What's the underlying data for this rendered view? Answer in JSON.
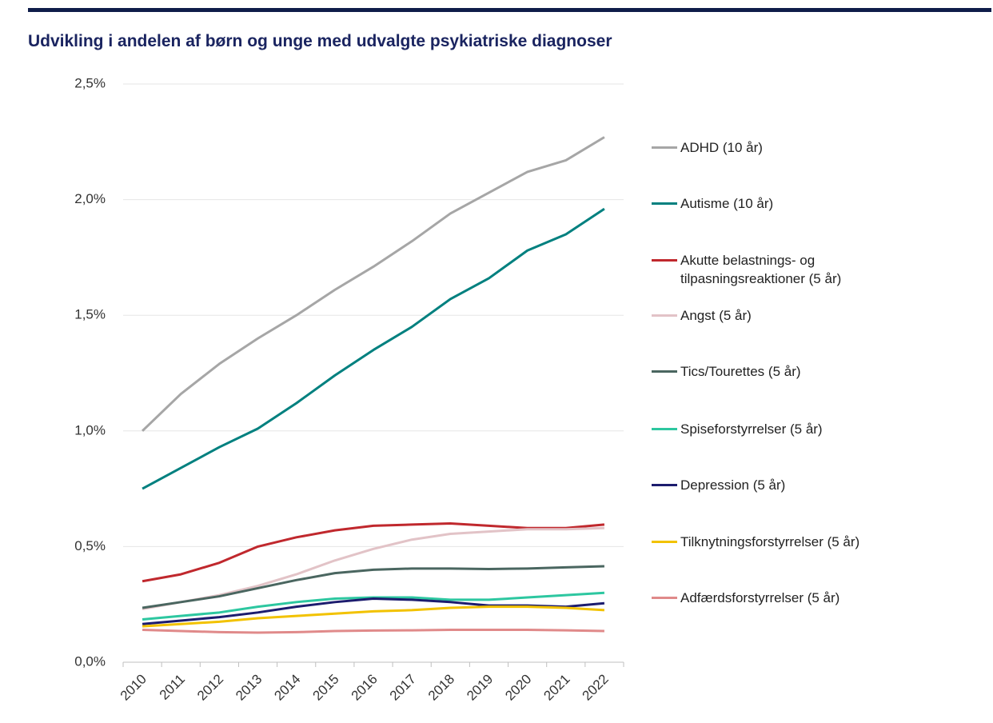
{
  "chart_data": {
    "type": "line",
    "title": "Udvikling i andelen af børn og unge med udvalgte psykiatriske diagnoser",
    "categories": [
      "2010",
      "2011",
      "2012",
      "2013",
      "2014",
      "2015",
      "2016",
      "2017",
      "2018",
      "2019",
      "2020",
      "2021",
      "2022"
    ],
    "ylim": [
      0,
      2.5
    ],
    "yticks": [
      {
        "value": 0,
        "label": "0,0%"
      },
      {
        "value": 0.5,
        "label": "0,5%"
      },
      {
        "value": 1,
        "label": "1,0%"
      },
      {
        "value": 1.5,
        "label": "1,5%"
      },
      {
        "value": 2,
        "label": "2,0%"
      },
      {
        "value": 2.5,
        "label": "2,5%"
      }
    ],
    "grid": true,
    "legend": "right",
    "series": [
      {
        "name": "ADHD (10 år)",
        "color": "#a6a6a6",
        "values": [
          1.0,
          1.16,
          1.29,
          1.4,
          1.5,
          1.61,
          1.71,
          1.82,
          1.94,
          2.03,
          2.12,
          2.17,
          2.27
        ]
      },
      {
        "name": "Autisme (10 år)",
        "color": "#00807f",
        "values": [
          0.75,
          0.84,
          0.93,
          1.01,
          1.12,
          1.24,
          1.35,
          1.45,
          1.57,
          1.66,
          1.78,
          1.85,
          1.96
        ]
      },
      {
        "name": "Akutte belastnings- og tilpasningsreaktioner (5 år)",
        "color": "#c0282d",
        "values": [
          0.35,
          0.38,
          0.43,
          0.5,
          0.54,
          0.57,
          0.59,
          0.595,
          0.6,
          0.59,
          0.58,
          0.58,
          0.595
        ]
      },
      {
        "name": "Angst (5 år)",
        "color": "#e2c3c7",
        "values": [
          0.23,
          0.26,
          0.29,
          0.33,
          0.38,
          0.44,
          0.49,
          0.53,
          0.555,
          0.565,
          0.575,
          0.575,
          0.58
        ]
      },
      {
        "name": "Tics/Tourettes (5 år)",
        "color": "#4a6660",
        "values": [
          0.235,
          0.26,
          0.285,
          0.32,
          0.355,
          0.385,
          0.4,
          0.405,
          0.405,
          0.403,
          0.405,
          0.41,
          0.415
        ]
      },
      {
        "name": "Spiseforstyrrelser (5 år)",
        "color": "#2dc7a0",
        "values": [
          0.185,
          0.2,
          0.215,
          0.24,
          0.26,
          0.275,
          0.28,
          0.28,
          0.27,
          0.27,
          0.28,
          0.29,
          0.3
        ]
      },
      {
        "name": "Depression (5 år)",
        "color": "#1c1c6e",
        "values": [
          0.165,
          0.18,
          0.195,
          0.215,
          0.24,
          0.26,
          0.275,
          0.27,
          0.26,
          0.245,
          0.245,
          0.24,
          0.255
        ]
      },
      {
        "name": "Tilknytningsforstyrrelser (5 år)",
        "color": "#f2c200",
        "values": [
          0.155,
          0.165,
          0.175,
          0.19,
          0.2,
          0.21,
          0.22,
          0.225,
          0.235,
          0.24,
          0.24,
          0.235,
          0.225
        ]
      },
      {
        "name": "Adfærdsforstyrrelser (5 år)",
        "color": "#e08a8a",
        "values": [
          0.14,
          0.135,
          0.13,
          0.128,
          0.13,
          0.135,
          0.137,
          0.138,
          0.14,
          0.14,
          0.14,
          0.138,
          0.135
        ]
      }
    ]
  }
}
